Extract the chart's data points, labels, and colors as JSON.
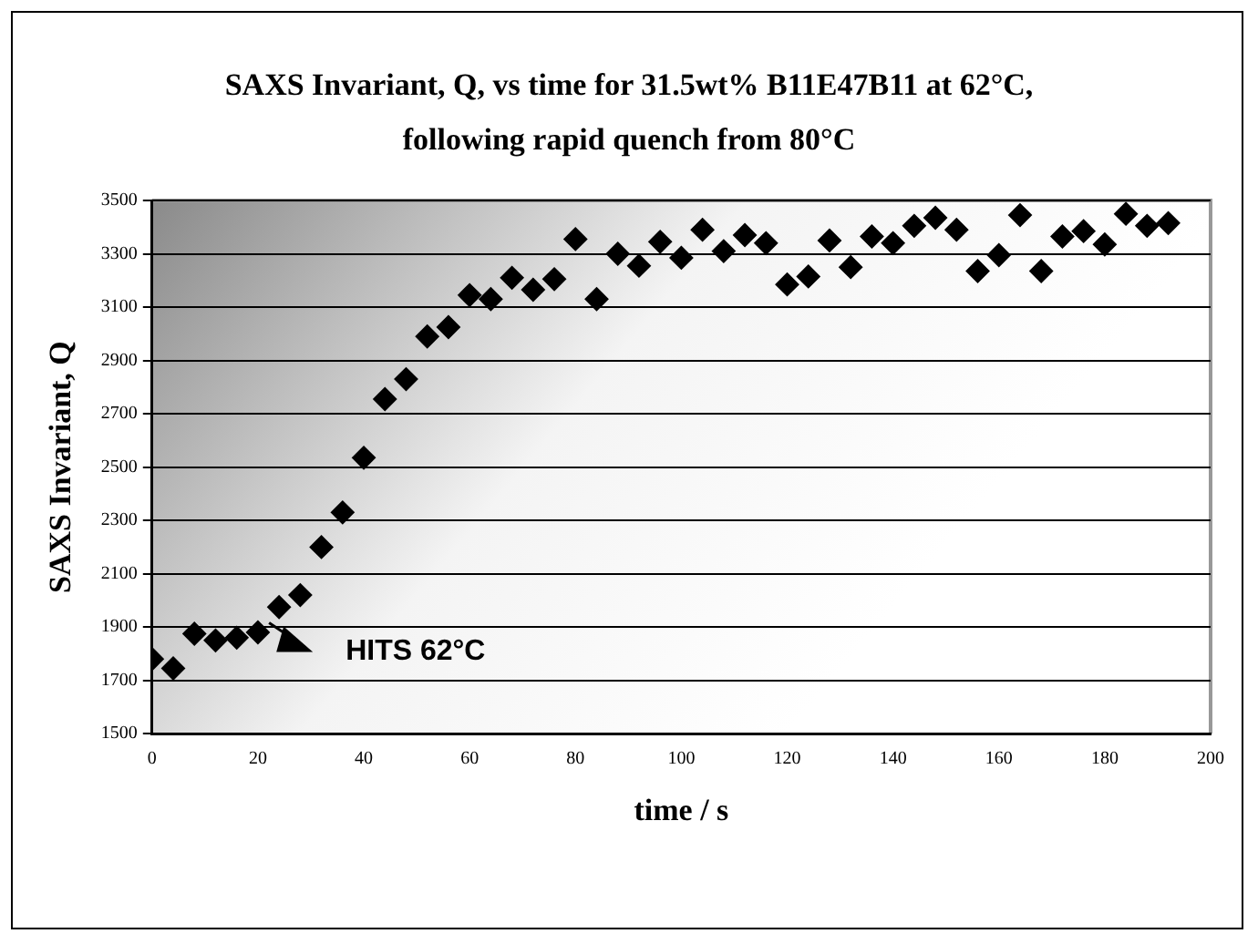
{
  "chart_data": {
    "type": "scatter",
    "title": "SAXS Invariant, Q, vs time for 31.5wt% B11E47B11 at 62°C, following rapid quench from 80°C",
    "xlabel": "time / s",
    "ylabel": "SAXS Invariant, Q",
    "x": [
      0,
      4,
      8,
      12,
      16,
      20,
      24,
      28,
      32,
      36,
      40,
      44,
      48,
      52,
      56,
      60,
      64,
      68,
      72,
      76,
      80,
      84,
      88,
      92,
      96,
      100,
      104,
      108,
      112,
      116,
      120,
      124,
      128,
      132,
      136,
      140,
      144,
      148,
      152,
      156,
      160,
      164,
      168,
      172,
      176,
      180,
      184,
      188,
      192
    ],
    "series": [
      {
        "color": "#000000",
        "values": [
          1780,
          1745,
          1875,
          1850,
          1860,
          1880,
          1975,
          2020,
          2200,
          2330,
          2535,
          2755,
          2830,
          2990,
          3025,
          3145,
          3130,
          3210,
          3165,
          3205,
          3355,
          3130,
          3300,
          3255,
          3345,
          3285,
          3390,
          3310,
          3370,
          3340,
          3185,
          3215,
          3350,
          3250,
          3365,
          3340,
          3405,
          3435,
          3390,
          3235,
          3295,
          3445,
          3235,
          3365,
          3385,
          3335,
          3450,
          3405,
          3415
        ]
      }
    ],
    "xlim": [
      0,
      200
    ],
    "xticks": [
      0,
      20,
      40,
      60,
      80,
      100,
      120,
      140,
      160,
      180,
      200
    ],
    "ylim": [
      1500,
      3500
    ],
    "yticks": [
      1500,
      1700,
      1900,
      2100,
      2300,
      2500,
      2700,
      2900,
      3100,
      3300,
      3500
    ],
    "grid": "y",
    "marker": "diamond",
    "legend": false,
    "annotations": [
      "HITS 62°C"
    ]
  }
}
